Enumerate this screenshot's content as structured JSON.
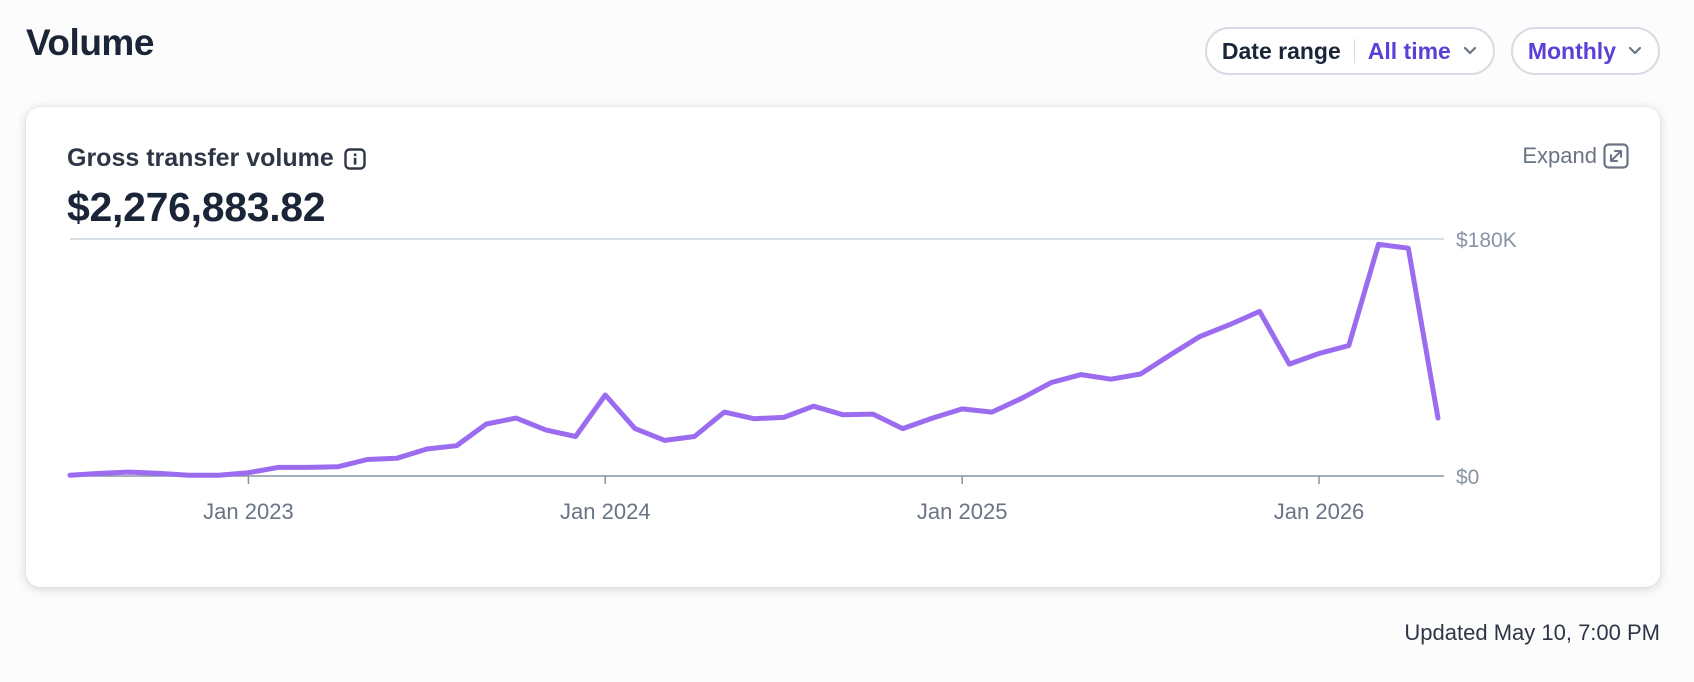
{
  "header": {
    "title": "Volume",
    "date_range_label": "Date range",
    "date_range_value": "All time",
    "interval_value": "Monthly"
  },
  "card": {
    "metric_title": "Gross transfer volume",
    "metric_value": "$2,276,883.82",
    "expand_label": "Expand"
  },
  "footer": {
    "updated": "Updated May 10, 7:00 PM"
  },
  "colors": {
    "line": "#9b6bf0",
    "accent": "#5b3fd6",
    "axis": "#8a93a5",
    "grid": "#c9d6dc"
  },
  "icons": {
    "info": "info-icon",
    "expand": "expand-arrow-icon",
    "chevron": "chevron-down-icon"
  },
  "chart_data": {
    "type": "line",
    "title": "",
    "xlabel": "",
    "ylabel": "",
    "x_tick_labels": [
      "Jan 2023",
      "Jan 2024",
      "Jan 2025",
      "Jan 2026"
    ],
    "y_tick_labels": [
      "$0",
      "$180K"
    ],
    "ylim": [
      0,
      180000
    ],
    "grid": true,
    "series": [
      {
        "x": [
          "2022-07",
          "2022-08",
          "2022-09",
          "2022-10",
          "2022-11",
          "2022-12",
          "2023-01",
          "2023-02",
          "2023-03",
          "2023-04",
          "2023-05",
          "2023-06",
          "2023-07",
          "2023-08",
          "2023-09",
          "2023-10",
          "2023-11",
          "2023-12",
          "2024-01",
          "2024-02",
          "2024-03",
          "2024-04",
          "2024-05",
          "2024-06",
          "2024-07",
          "2024-08",
          "2024-09",
          "2024-10",
          "2024-11",
          "2024-12",
          "2025-01",
          "2025-02",
          "2025-03",
          "2025-04",
          "2025-05",
          "2025-06",
          "2025-07",
          "2025-08",
          "2025-09",
          "2025-10",
          "2025-11",
          "2025-12",
          "2026-01",
          "2026-02",
          "2026-03",
          "2026-04",
          "2026-05"
        ],
        "values": [
          500,
          2000,
          3000,
          2000,
          500,
          500,
          2500,
          6500,
          6500,
          7000,
          12500,
          13500,
          20500,
          23000,
          39500,
          44000,
          35000,
          30000,
          61500,
          36000,
          27000,
          30000,
          48500,
          43500,
          44500,
          53000,
          46500,
          47000,
          36000,
          44000,
          51000,
          48500,
          59000,
          71000,
          77000,
          73500,
          77500,
          92000,
          106000,
          115000,
          125000,
          85000,
          93000,
          99000,
          176000,
          173000,
          44000
        ]
      }
    ]
  }
}
